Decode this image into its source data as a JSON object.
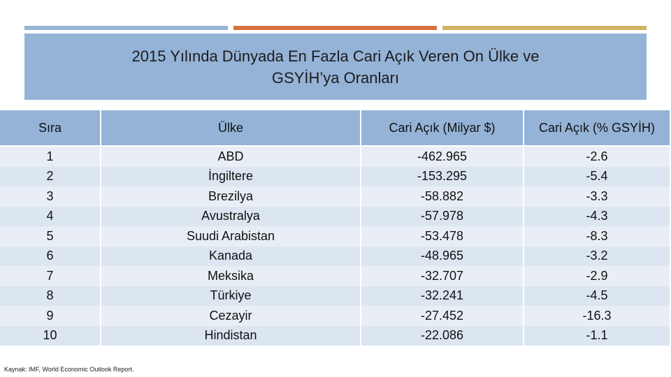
{
  "header": {
    "title_lines": [
      "2015 Yılında Dünyada En Fazla Cari Açık Veren On Ülke ve",
      "GSYİH’ya Oranları"
    ]
  },
  "table": {
    "columns": [
      "Sıra",
      "Ülke",
      "Cari Açık (Milyar $)",
      "Cari Açık (% GSYİH)"
    ],
    "rows": [
      [
        "1",
        "ABD",
        "-462.965",
        "-2.6"
      ],
      [
        "2",
        "İngiltere",
        "-153.295",
        "-5.4"
      ],
      [
        "3",
        "Brezilya",
        "-58.882",
        "-3.3"
      ],
      [
        "4",
        "Avustralya",
        "-57.978",
        "-4.3"
      ],
      [
        "5",
        "Suudi Arabistan",
        "-53.478",
        "-8.3"
      ],
      [
        "6",
        "Kanada",
        "-48.965",
        "-3.2"
      ],
      [
        "7",
        "Meksika",
        "-32.707",
        "-2.9"
      ],
      [
        "8",
        "Türkiye",
        "-32.241",
        "-4.5"
      ],
      [
        "9",
        "Cezayir",
        "-27.452",
        "-16.3"
      ],
      [
        "10",
        "Hindistan",
        "-22.086",
        "-1.1"
      ]
    ]
  },
  "footer": {
    "source": "Kaynak: IMF, World Economic Outlook Report."
  }
}
